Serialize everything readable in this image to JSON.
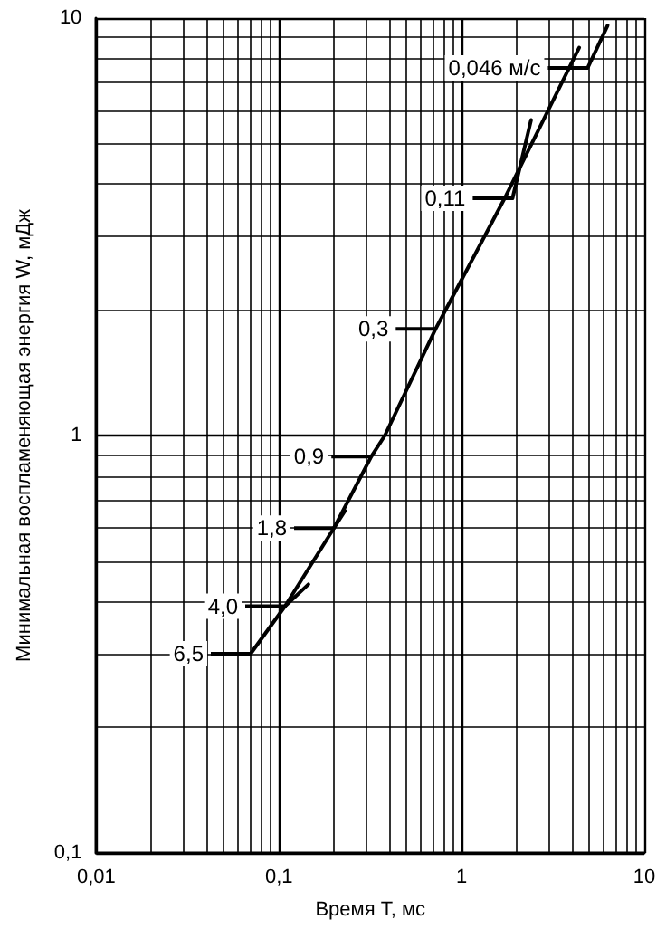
{
  "chart_data": {
    "type": "line",
    "xlabel": "Время T, мс",
    "ylabel": "Минимальная воспламеняющая энергия W, мДж",
    "log": "xy",
    "grid": true,
    "marker": "none",
    "line_style": "solid",
    "xlim": [
      0.01,
      10
    ],
    "ylim": [
      0.1,
      10
    ],
    "xticks": [
      {
        "value": 0.01,
        "label": "0,01"
      },
      {
        "value": 0.1,
        "label": "0,1"
      },
      {
        "value": 1,
        "label": "1"
      },
      {
        "value": 10,
        "label": "10"
      }
    ],
    "yticks": [
      {
        "value": 0.1,
        "label": "0,1"
      },
      {
        "value": 1,
        "label": "1"
      },
      {
        "value": 10,
        "label": "10"
      }
    ],
    "series": [
      {
        "color": "#000000",
        "x": [
          0.07,
          0.108,
          0.2,
          0.32,
          0.38,
          0.72,
          1.72,
          4.4
        ],
        "values": [
          0.3,
          0.39,
          0.6,
          0.89,
          1,
          1.8,
          3.7,
          8.5
        ]
      },
      {
        "color": "#000000",
        "x": [
          4.9,
          6.3
        ],
        "values": [
          7.6,
          9.6
        ]
      },
      {
        "color": "#000000",
        "x": [
          1.9,
          2.4
        ],
        "values": [
          3.7,
          5.7
        ]
      },
      {
        "color": "#000000",
        "x": [
          0.2,
          0.23
        ],
        "values": [
          0.6,
          0.66
        ]
      },
      {
        "color": "#000000",
        "x": [
          0.108,
          0.145
        ],
        "values": [
          0.39,
          0.44
        ]
      }
    ],
    "annotations": [
      {
        "text": "0,046 м/с",
        "x": 4.9,
        "y": 7.6
      },
      {
        "text": "0,11",
        "x": 1.9,
        "y": 3.7
      },
      {
        "text": "0,3",
        "x": 0.72,
        "y": 1.8
      },
      {
        "text": "0,9",
        "x": 0.32,
        "y": 0.89
      },
      {
        "text": "1,8",
        "x": 0.2,
        "y": 0.6
      },
      {
        "text": "4,0",
        "x": 0.108,
        "y": 0.39
      },
      {
        "text": "6,5",
        "x": 0.07,
        "y": 0.3
      }
    ]
  }
}
